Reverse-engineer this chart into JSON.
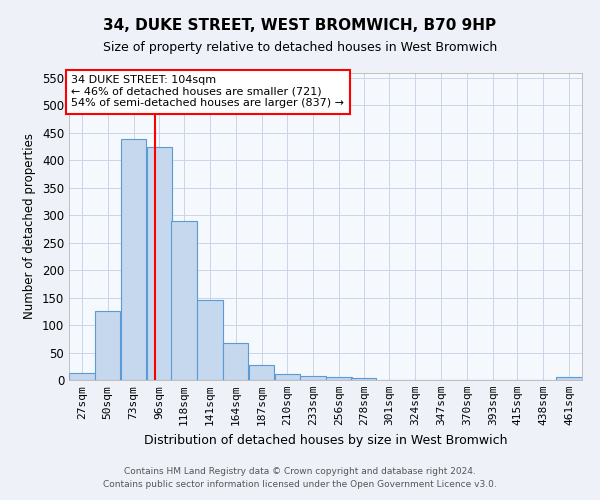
{
  "title": "34, DUKE STREET, WEST BROMWICH, B70 9HP",
  "subtitle": "Size of property relative to detached houses in West Bromwich",
  "xlabel": "Distribution of detached houses by size in West Bromwich",
  "ylabel": "Number of detached properties",
  "bar_color": "#c5d8ed",
  "bar_edge_color": "#5b9bd5",
  "red_line_x": 104,
  "annotation_text": "34 DUKE STREET: 104sqm\n← 46% of detached houses are smaller (721)\n54% of semi-detached houses are larger (837) →",
  "annotation_box_color": "white",
  "annotation_box_edge_color": "red",
  "footer1": "Contains HM Land Registry data © Crown copyright and database right 2024.",
  "footer2": "Contains public sector information licensed under the Open Government Licence v3.0.",
  "bins": [
    27,
    50,
    73,
    96,
    118,
    141,
    164,
    187,
    210,
    233,
    256,
    278,
    301,
    324,
    347,
    370,
    393,
    415,
    438,
    461,
    484
  ],
  "values": [
    12,
    125,
    438,
    425,
    290,
    146,
    68,
    27,
    11,
    8,
    5,
    4,
    0,
    0,
    0,
    0,
    0,
    0,
    0,
    6
  ],
  "ylim": [
    0,
    560
  ],
  "yticks": [
    0,
    50,
    100,
    150,
    200,
    250,
    300,
    350,
    400,
    450,
    500,
    550
  ],
  "background_color": "#eef2f8",
  "plot_background_color": "#f5f8fd",
  "grid_color": "#c8d4e8",
  "title_fontsize": 11,
  "subtitle_fontsize": 9,
  "ylabel_fontsize": 8.5,
  "xlabel_fontsize": 9,
  "tick_fontsize": 8,
  "annotation_fontsize": 8
}
